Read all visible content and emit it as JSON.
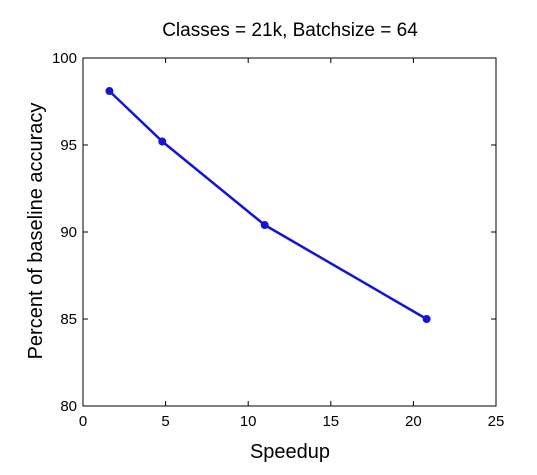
{
  "chart_data": {
    "type": "line",
    "title": "Classes = 21k, Batchsize = 64",
    "xlabel": "Speedup",
    "ylabel": "Percent of baseline accuracy",
    "xlim": [
      0,
      25
    ],
    "ylim": [
      80,
      100
    ],
    "xticks": [
      0,
      5,
      10,
      15,
      20,
      25
    ],
    "yticks": [
      80,
      85,
      90,
      95,
      100
    ],
    "xtick_labels": [
      "0",
      "5",
      "10",
      "15",
      "20",
      "25"
    ],
    "ytick_labels": [
      "80",
      "85",
      "90",
      "95",
      "100"
    ],
    "grid": false,
    "legend": "none",
    "series": [
      {
        "color": "#1414d8",
        "marker": "circle",
        "x": [
          1.6,
          4.8,
          11.0,
          20.8
        ],
        "y": [
          98.1,
          95.2,
          90.4,
          85.0
        ]
      }
    ]
  }
}
